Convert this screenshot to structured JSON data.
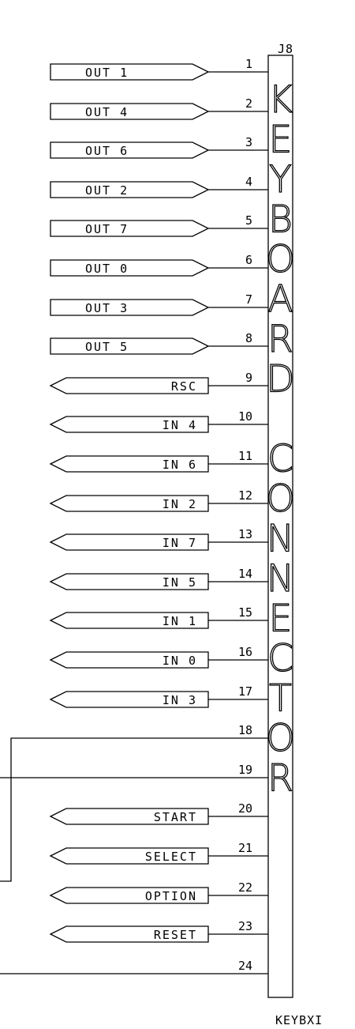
{
  "connector": {
    "ref": "J8",
    "part": "KEYBXI",
    "title_letters": [
      "K",
      "E",
      "Y",
      "B",
      "O",
      "A",
      "R",
      "D",
      "",
      "C",
      "O",
      "N",
      "N",
      "E",
      "C",
      "T",
      "O",
      "R"
    ]
  },
  "pins": [
    {
      "num": "1",
      "label": "OUT 1",
      "dir": "out"
    },
    {
      "num": "2",
      "label": "OUT 4",
      "dir": "out"
    },
    {
      "num": "3",
      "label": "OUT 6",
      "dir": "out"
    },
    {
      "num": "4",
      "label": "OUT 2",
      "dir": "out"
    },
    {
      "num": "5",
      "label": "OUT 7",
      "dir": "out"
    },
    {
      "num": "6",
      "label": "OUT 0",
      "dir": "out"
    },
    {
      "num": "7",
      "label": "OUT 3",
      "dir": "out"
    },
    {
      "num": "8",
      "label": "OUT 5",
      "dir": "out"
    },
    {
      "num": "9",
      "label": "RSC",
      "dir": "in"
    },
    {
      "num": "10",
      "label": "IN 4",
      "dir": "in"
    },
    {
      "num": "11",
      "label": "IN 6",
      "dir": "in"
    },
    {
      "num": "12",
      "label": "IN 2",
      "dir": "in"
    },
    {
      "num": "13",
      "label": "IN 7",
      "dir": "in"
    },
    {
      "num": "14",
      "label": "IN 5",
      "dir": "in"
    },
    {
      "num": "15",
      "label": "IN 1",
      "dir": "in"
    },
    {
      "num": "16",
      "label": "IN 0",
      "dir": "in"
    },
    {
      "num": "17",
      "label": "IN 3",
      "dir": "in"
    },
    {
      "num": "18",
      "label": "",
      "dir": "wire"
    },
    {
      "num": "19",
      "label": "",
      "dir": "wire"
    },
    {
      "num": "20",
      "label": "START",
      "dir": "in"
    },
    {
      "num": "21",
      "label": "SELECT",
      "dir": "in"
    },
    {
      "num": "22",
      "label": "OPTION",
      "dir": "in"
    },
    {
      "num": "23",
      "label": "RESET",
      "dir": "in"
    },
    {
      "num": "24",
      "label": "",
      "dir": "wire"
    }
  ]
}
